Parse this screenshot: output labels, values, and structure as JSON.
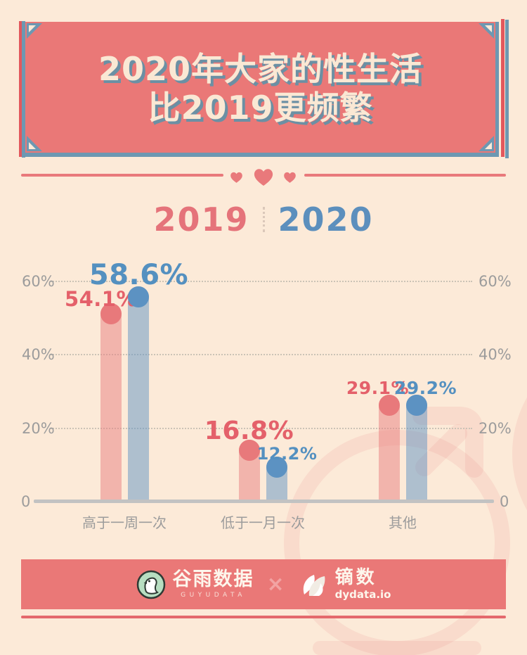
{
  "title": {
    "line1": "2020年大家的性生活",
    "line2": "比2019更频繁"
  },
  "legend": {
    "year_2019": "2019",
    "year_2020": "2020"
  },
  "chart_data": {
    "type": "bar",
    "style": "lollipop",
    "categories": [
      "高于一周一次",
      "低于一月一次",
      "其他"
    ],
    "series": [
      {
        "name": "2019",
        "values": [
          54.1,
          16.8,
          29.1
        ],
        "labels": [
          "54.1%",
          "16.8%",
          "29.1%"
        ],
        "dot_color": "#E8797B",
        "bar_color": "rgba(231,121,123,0.48)",
        "label_color": "#E4606A"
      },
      {
        "name": "2020",
        "values": [
          58.6,
          12.2,
          29.2
        ],
        "labels": [
          "58.6%",
          "12.2%",
          "29.2%"
        ],
        "dot_color": "#5C92C2",
        "bar_color": "rgba(95,147,195,0.5)",
        "label_color": "#5490C0"
      }
    ],
    "ylim": [
      0,
      60
    ],
    "yticks": [
      {
        "value": 0,
        "label": "0"
      },
      {
        "value": 20,
        "label": "20%"
      },
      {
        "value": 40,
        "label": "40%"
      },
      {
        "value": 60,
        "label": "60%"
      }
    ],
    "grid": "dotted horizontal, ticks mirrored on both sides",
    "legend_position": "top-center"
  },
  "footer": {
    "guyu_name": "谷雨数据",
    "guyu_sub": "GUYUDATA",
    "separator": "×",
    "dy_name": "镝数",
    "dy_sub": "dydata.io"
  },
  "colors": {
    "background": "#FCEAD8",
    "banner": "#EA7877",
    "banner_text": "#FAE8D4",
    "banner_text_shadow": "#6B90A4",
    "frame_blue": "#6D98B2",
    "frame_red": "#E2585D",
    "heart": "#E9797B",
    "legend_2019": "#E5737A",
    "legend_2020": "#5C8FBD",
    "axis_gray": "#9C9C9C",
    "baseline_gray": "#C2C2C2",
    "grid_dot": "#CBC3B6",
    "watermark_pink": "rgba(233,120,122,0.13)",
    "footer_band": "#EA7877",
    "footer_accent_line": "#E4696C",
    "collab_x": "#F2A3A3"
  }
}
